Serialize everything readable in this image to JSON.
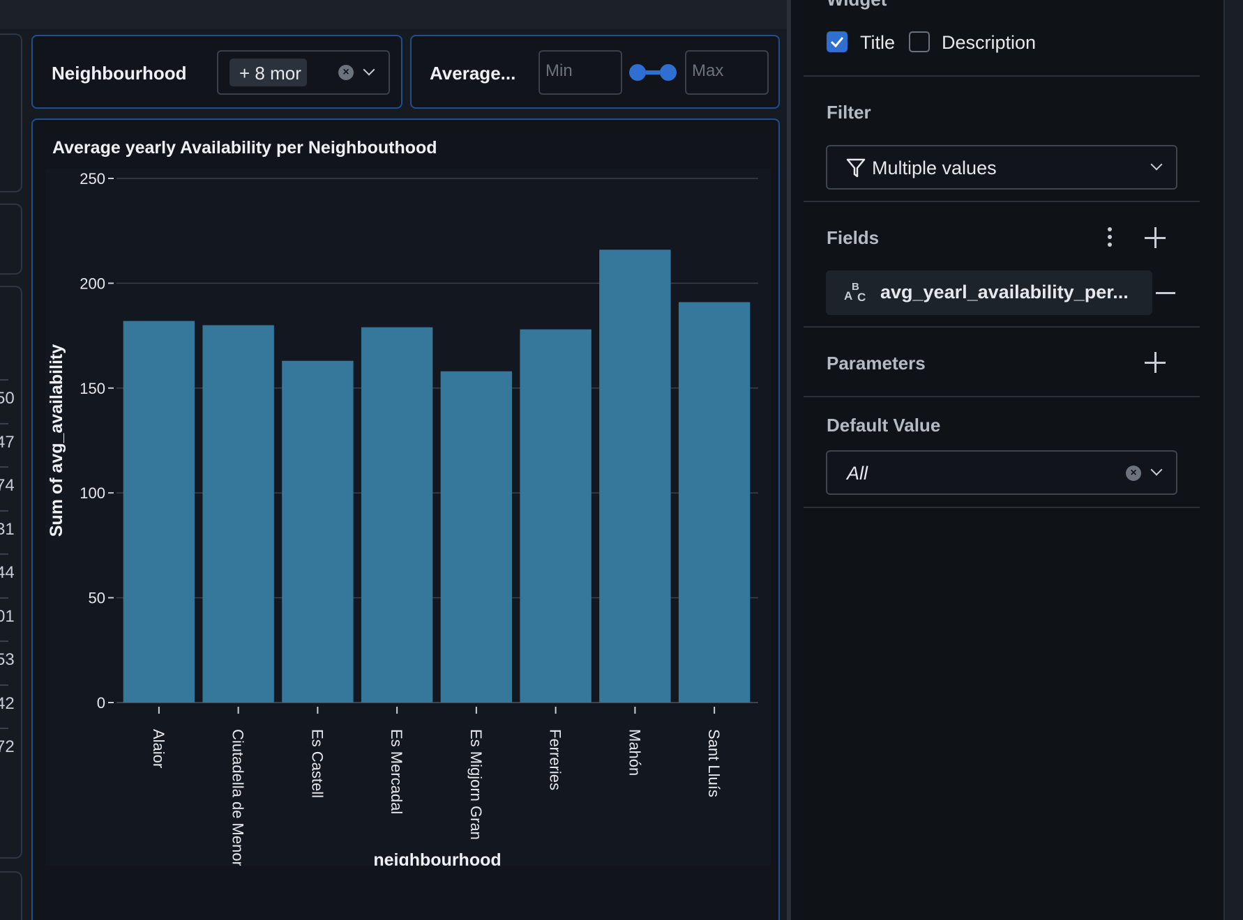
{
  "filters": {
    "neighbourhood": {
      "label": "Neighbourhood",
      "chip": "+ 8 mor",
      "clear_glyph": "×"
    },
    "average": {
      "label": "Average...",
      "min_placeholder": "Min",
      "max_placeholder": "Max"
    }
  },
  "left_edge_numbers": [
    "50",
    "47",
    "74",
    "31",
    "44",
    "01",
    "53",
    "42",
    "72"
  ],
  "chart_data": {
    "type": "bar",
    "title": "Average yearly Availability per Neighbouthood",
    "xlabel": "neighbourhood",
    "ylabel": "Sum of avg_availability",
    "ylim": [
      0,
      250
    ],
    "yticks": [
      0,
      50,
      100,
      150,
      200,
      250
    ],
    "categories": [
      "Alaior",
      "Ciutadella de Menorca",
      "Es Castell",
      "Es Mercadal",
      "Es Migjorn Gran",
      "Ferreries",
      "Mahón",
      "Sant Lluís"
    ],
    "values": [
      182,
      180,
      163,
      179,
      158,
      178,
      216,
      191
    ],
    "color": "#35789c",
    "grid": true
  },
  "panel": {
    "widget_section": "Widget",
    "title_checkbox": {
      "label": "Title",
      "checked": true
    },
    "description_checkbox": {
      "label": "Description",
      "checked": false
    },
    "filter_section": "Filter",
    "filter_value": "Multiple values",
    "fields_section": "Fields",
    "field_type_icon": "abc-text-icon",
    "field_name": "avg_yearl_availability_per...",
    "parameters_section": "Parameters",
    "default_value_section": "Default Value",
    "default_value": "All"
  },
  "colors": {
    "accent": "#2f6fd1",
    "widget_border": "#1f4f8f",
    "bar": "#35789c"
  }
}
